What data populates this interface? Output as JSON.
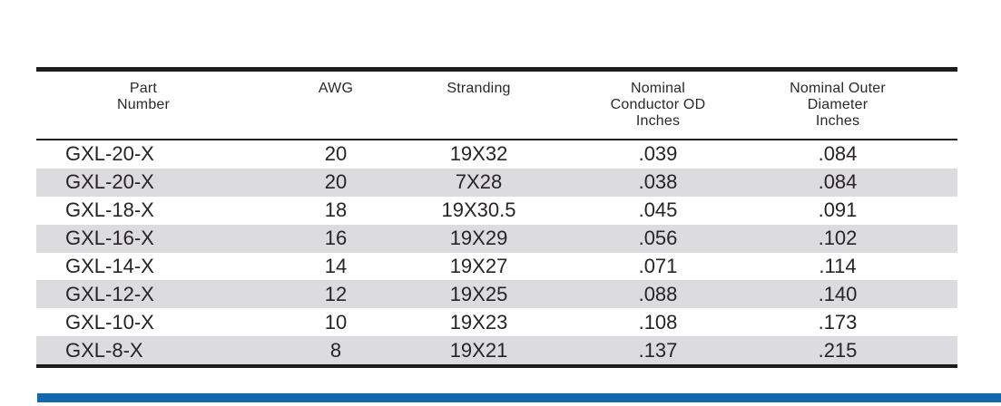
{
  "table": {
    "headers": [
      {
        "id": "part-number",
        "lines": [
          "Part",
          "Number"
        ]
      },
      {
        "id": "awg",
        "lines": [
          "AWG"
        ]
      },
      {
        "id": "stranding",
        "lines": [
          "Stranding"
        ]
      },
      {
        "id": "conductor-od",
        "lines": [
          "Nominal",
          "Conductor OD",
          "Inches"
        ]
      },
      {
        "id": "outer-diameter",
        "lines": [
          "Nominal Outer",
          "Diameter",
          "Inches"
        ]
      }
    ],
    "rows": [
      [
        "GXL-20-X",
        "20",
        "19X32",
        ".039",
        ".084"
      ],
      [
        "GXL-20-X",
        "20",
        "7X28",
        ".038",
        ".084"
      ],
      [
        "GXL-18-X",
        "18",
        "19X30.5",
        ".045",
        ".091"
      ],
      [
        "GXL-16-X",
        "16",
        "19X29",
        ".056",
        ".102"
      ],
      [
        "GXL-14-X",
        "14",
        "19X27",
        ".071",
        ".114"
      ],
      [
        "GXL-12-X",
        "12",
        "19X25",
        ".088",
        ".140"
      ],
      [
        "GXL-10-X",
        "10",
        "19X23",
        ".108",
        ".173"
      ],
      [
        "GXL-8-X",
        "8",
        "19X21",
        ".137",
        ".215"
      ]
    ]
  },
  "colors": {
    "row_alt_background": "#dcdcde",
    "table_border": "#1c1c1e",
    "text": "#272327",
    "footer_accent_bar": "#1268ad"
  }
}
